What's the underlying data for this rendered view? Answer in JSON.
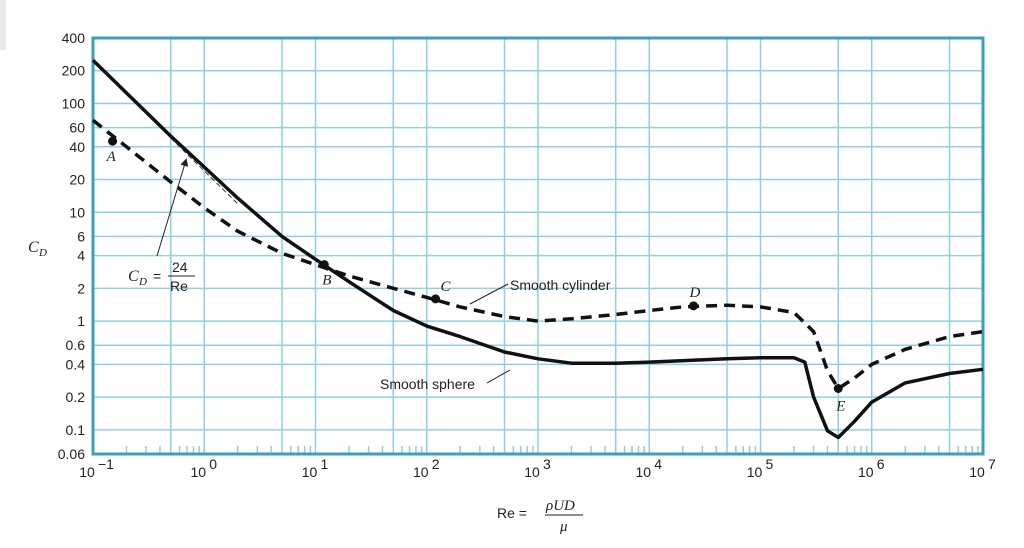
{
  "chart_data": {
    "type": "line",
    "title": "",
    "xlabel": "Re",
    "ylabel": "C_D",
    "x_scale": "log",
    "y_scale": "log",
    "xlim": [
      0.1,
      10000000
    ],
    "ylim": [
      0.06,
      400
    ],
    "grid": true,
    "x_ticks": [
      {
        "value": 0.1,
        "base": "10",
        "exp": "−1"
      },
      {
        "value": 1,
        "base": "10",
        "exp": "0"
      },
      {
        "value": 10,
        "base": "10",
        "exp": "1"
      },
      {
        "value": 100,
        "base": "10",
        "exp": "2"
      },
      {
        "value": 1000,
        "base": "10",
        "exp": "3"
      },
      {
        "value": 10000,
        "base": "10",
        "exp": "4"
      },
      {
        "value": 100000,
        "base": "10",
        "exp": "5"
      },
      {
        "value": 1000000,
        "base": "10",
        "exp": "6"
      },
      {
        "value": 10000000,
        "base": "10",
        "exp": "7"
      }
    ],
    "y_ticks": [
      {
        "value": 400,
        "label": "400"
      },
      {
        "value": 200,
        "label": "200"
      },
      {
        "value": 100,
        "label": "100"
      },
      {
        "value": 60,
        "label": "60"
      },
      {
        "value": 40,
        "label": "40"
      },
      {
        "value": 20,
        "label": "20"
      },
      {
        "value": 10,
        "label": "10"
      },
      {
        "value": 6,
        "label": "6"
      },
      {
        "value": 4,
        "label": "4"
      },
      {
        "value": 2,
        "label": "2"
      },
      {
        "value": 1,
        "label": "1"
      },
      {
        "value": 0.6,
        "label": "0.6"
      },
      {
        "value": 0.4,
        "label": "0.4"
      },
      {
        "value": 0.2,
        "label": "0.2"
      },
      {
        "value": 0.1,
        "label": "0.1"
      },
      {
        "value": 0.06,
        "label": "0.06"
      }
    ],
    "series": [
      {
        "name": "Smooth sphere",
        "style": "solid",
        "color": "#111111",
        "points": [
          [
            0.1,
            250
          ],
          [
            0.2,
            125
          ],
          [
            0.5,
            50
          ],
          [
            1,
            26
          ],
          [
            2,
            13.5
          ],
          [
            5,
            6
          ],
          [
            10,
            3.7
          ],
          [
            20,
            2.3
          ],
          [
            50,
            1.25
          ],
          [
            100,
            0.9
          ],
          [
            200,
            0.72
          ],
          [
            500,
            0.52
          ],
          [
            1000,
            0.45
          ],
          [
            2000,
            0.41
          ],
          [
            5000,
            0.41
          ],
          [
            10000,
            0.42
          ],
          [
            50000,
            0.45
          ],
          [
            100000,
            0.46
          ],
          [
            200000,
            0.46
          ],
          [
            250000,
            0.42
          ],
          [
            300000,
            0.2
          ],
          [
            400000,
            0.098
          ],
          [
            500000,
            0.085
          ],
          [
            700000,
            0.12
          ],
          [
            1000000,
            0.18
          ],
          [
            2000000,
            0.27
          ],
          [
            5000000,
            0.33
          ],
          [
            10000000,
            0.36
          ]
        ]
      },
      {
        "name": "Smooth cylinder",
        "style": "dashed",
        "color": "#111111",
        "points": [
          [
            0.1,
            70
          ],
          [
            0.2,
            40
          ],
          [
            0.5,
            19
          ],
          [
            1,
            11
          ],
          [
            2,
            6.7
          ],
          [
            5,
            4.2
          ],
          [
            10,
            3.3
          ],
          [
            20,
            2.6
          ],
          [
            50,
            2
          ],
          [
            100,
            1.65
          ],
          [
            200,
            1.35
          ],
          [
            500,
            1.1
          ],
          [
            1000,
            1.0
          ],
          [
            2000,
            1.05
          ],
          [
            5000,
            1.15
          ],
          [
            10000,
            1.25
          ],
          [
            20000,
            1.35
          ],
          [
            50000,
            1.4
          ],
          [
            100000,
            1.35
          ],
          [
            200000,
            1.2
          ],
          [
            300000,
            0.8
          ],
          [
            400000,
            0.35
          ],
          [
            500000,
            0.24
          ],
          [
            700000,
            0.3
          ],
          [
            1000000,
            0.4
          ],
          [
            2000000,
            0.55
          ],
          [
            5000000,
            0.72
          ],
          [
            10000000,
            0.8
          ]
        ]
      },
      {
        "name": "C_D = 24/Re",
        "style": "thin-dashed",
        "color": "#333333",
        "points": [
          [
            0.5,
            48
          ],
          [
            2,
            12
          ]
        ]
      }
    ],
    "markers": [
      {
        "label": "A",
        "x": 0.15,
        "y": 45
      },
      {
        "label": "B",
        "x": 12,
        "y": 3.3
      },
      {
        "label": "C",
        "x": 120,
        "y": 1.6
      },
      {
        "label": "D",
        "x": 25000,
        "y": 1.38
      },
      {
        "label": "E",
        "x": 500000,
        "y": 0.24
      }
    ],
    "annotations": {
      "cylinder_label": "Smooth cylinder",
      "sphere_label": "Smooth sphere",
      "stokes_lhs": "C",
      "stokes_sub": "D",
      "stokes_eq": "=",
      "stokes_num": "24",
      "stokes_den": "Re",
      "ylabel_main": "C",
      "ylabel_sub": "D",
      "xlabel_re": "Re =",
      "xlabel_num": "ρUD",
      "xlabel_den": "μ"
    }
  }
}
